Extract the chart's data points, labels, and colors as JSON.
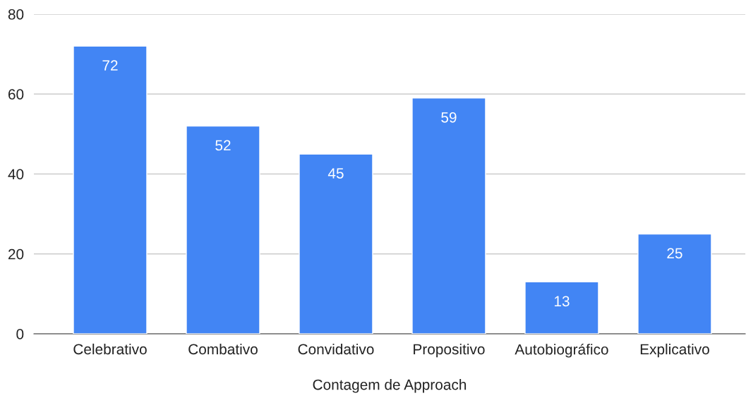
{
  "chart_data": {
    "type": "bar",
    "xlabel": "Contagem de Approach",
    "categories": [
      "Celebrativo",
      "Combativo",
      "Convidativo",
      "Propositivo",
      "Autobiográfico",
      "Explicativo"
    ],
    "values": [
      72,
      52,
      45,
      59,
      13,
      25
    ],
    "color": "#4285f4",
    "ylim": [
      0,
      80
    ],
    "yticks": [
      0,
      20,
      40,
      60,
      80
    ],
    "grid": "y",
    "data_labels": true
  }
}
